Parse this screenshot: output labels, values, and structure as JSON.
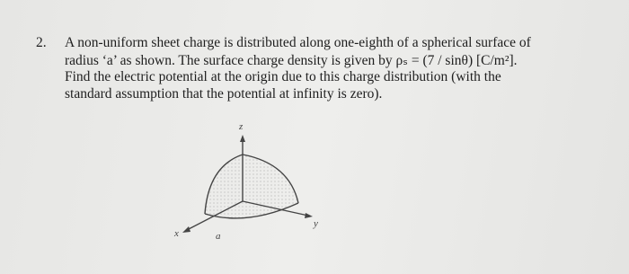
{
  "problem": {
    "number": "2.",
    "lines": [
      "A non-uniform sheet charge is distributed along one-eighth of a spherical surface of",
      "radius ‘a’ as shown. The surface charge density is given by ρₛ = (7 / sinθ) [C/m²].",
      "Find the electric potential at the origin due to this charge distribution (with the",
      "standard assumption that the potential at infinity is zero)."
    ]
  },
  "figure": {
    "z_label": "z",
    "x_label": "x",
    "y_label": "y",
    "radius_label": "a"
  }
}
